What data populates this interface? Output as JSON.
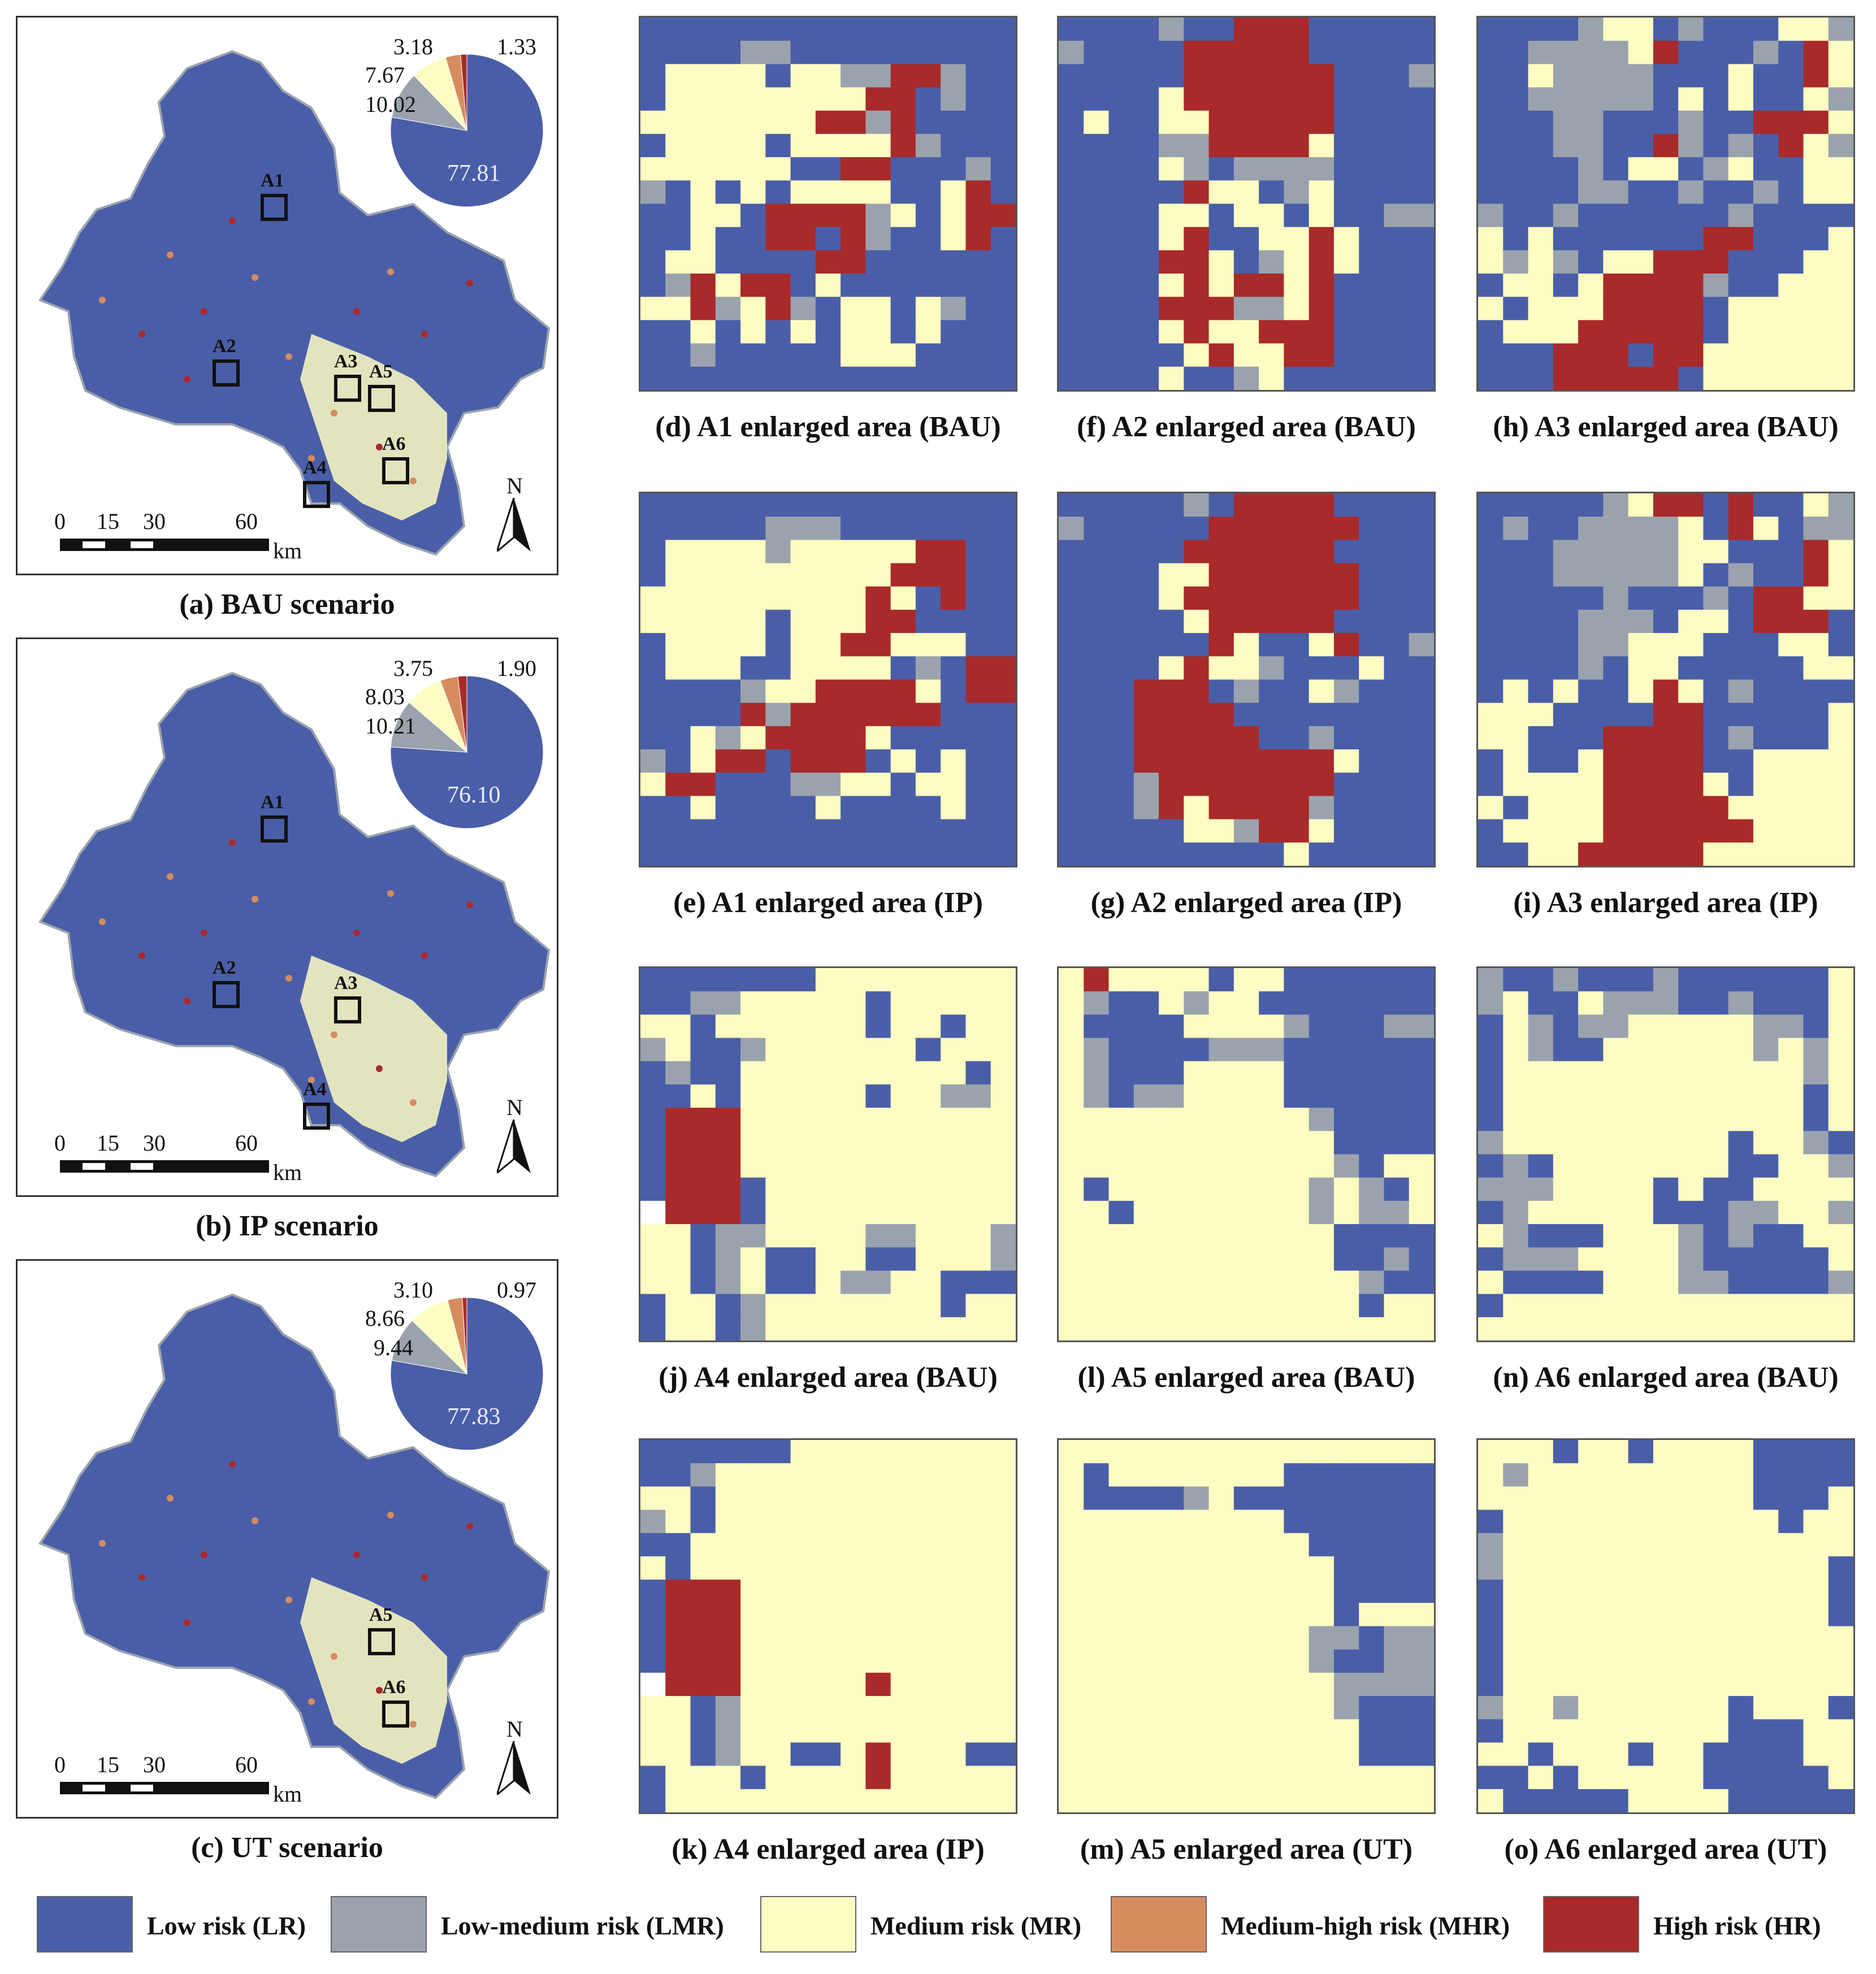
{
  "colors": {
    "LR": "#4a5ea8",
    "LMR": "#9aa3ad",
    "MR": "#fdfcc2",
    "MHR": "#d68c5e",
    "HR": "#a82a2a",
    "outline": "#111111"
  },
  "chart_data": [
    {
      "type": "pie",
      "title": "(a) BAU scenario",
      "categories": [
        "Low risk (LR)",
        "Low-medium risk (LMR)",
        "Medium risk (MR)",
        "Medium-high risk (MHR)",
        "High risk (HR)"
      ],
      "values": [
        77.81,
        10.02,
        7.67,
        3.18,
        1.33
      ],
      "labels": [
        "77.81",
        "10.02",
        "7.67",
        "3.18",
        "1.33"
      ],
      "areas": [
        "A1",
        "A2",
        "A3",
        "A5",
        "A6",
        "A4"
      ]
    },
    {
      "type": "pie",
      "title": "(b) IP scenario",
      "categories": [
        "Low risk (LR)",
        "Low-medium risk (LMR)",
        "Medium risk (MR)",
        "Medium-high risk (MHR)",
        "High risk (HR)"
      ],
      "values": [
        76.1,
        10.21,
        8.03,
        3.75,
        1.9
      ],
      "labels": [
        "76.10",
        "10.21",
        "8.03",
        "3.75",
        "1.90"
      ],
      "areas": [
        "A1",
        "A2",
        "A3",
        "A4"
      ]
    },
    {
      "type": "pie",
      "title": "(c) UT scenario",
      "categories": [
        "Low risk (LR)",
        "Low-medium risk (LMR)",
        "Medium risk (MR)",
        "Medium-high risk (MHR)",
        "High risk (HR)"
      ],
      "values": [
        77.83,
        9.44,
        8.66,
        3.1,
        0.97
      ],
      "labels": [
        "77.83",
        "9.44",
        "8.66",
        "3.10",
        "0.97"
      ],
      "areas": [
        "A5",
        "A6"
      ]
    }
  ],
  "scale_bar": {
    "ticks": [
      "0",
      "15",
      "30",
      "60"
    ],
    "unit": "km"
  },
  "north_label": "N",
  "panels": [
    {
      "caption": "(d) A1 enlarged area (BAU)",
      "grid": [
        "LLLLLLLLLLLLLLL",
        "LLLLGGLLLLLLLLL",
        "LMMMMLMMGGHHGLL",
        "LMMMMMMMMHHLGLL",
        "MMMMMMMHHGHLLLL",
        "LMMMMLMMMMHGLLL",
        "MMMMMMLLHHLLLGL",
        "GLMLMLMMMMLLMHL",
        "LLMMLHHHHGMLMHH",
        "LLMLLHHLHGLLMHL",
        "LMMLLLLHHLLLLLL",
        "LGHMHHLMLLLLLLL",
        "MMHGMHGLMMLMGLL",
        "LLMLMLMLMMLMLLL",
        "LLGLLLLLMMMLLLL",
        "LLLLLLLLLLLLLLL"
      ]
    },
    {
      "caption": "(f) A2 enlarged area (BAU)",
      "grid": [
        "LLLLGLLHHHLLLLL",
        "GLLLLHHHHHLLLLL",
        "LLLLLHHHHHHLLLG",
        "LLLLMHHHHHHLLLL",
        "LMLLMMHHHHHLLLL",
        "LLLLGGHHHHMLLLL",
        "LLLLMGLGGGGLLLL",
        "LLLLLHMMLGMLLLL",
        "LLLLMMLMMLMLLGG",
        "LLLLMHLLMMHMLLL",
        "LLLLHHMLGMHMLLL",
        "LLLLMHMHHMHLLLL",
        "LLLLHHHGGMHLLLL",
        "LLLLMHMMHHHLLLL",
        "LLLLLMHMMHHLLLL",
        "LLLLMLLGMLLLLLL"
      ]
    },
    {
      "caption": "(h) A3 enlarged area (BAU)",
      "grid": [
        "LLLLGMMLGLLLMMG",
        "LLGGGGMHLLLGLHM",
        "LLMGGGGLLLMLLHM",
        "LLGGGGGLMLMLLMG",
        "LLLGGLLLGLLHHHM",
        "LLLGGLLHGLGLHMG",
        "LLLLGLMMLGMLLMM",
        "LLLLGGLLGLLGLMM",
        "GLLGLLLLLLGLLLL",
        "MLMLLLLLLHHLLLM",
        "MGMGLMMHHHLLLMM",
        "LMMLMHHHHGLLMMM",
        "MLMMMHHHHLMMMMM",
        "LMMMHHHHHLMMMMM",
        "LLLHHHLHHMMMMMM",
        "LLLHHHHHLMMMMMM"
      ]
    },
    {
      "caption": "(e) A1 enlarged area (IP)",
      "grid": [
        "LLLLLLLLLLLLLLL",
        "LLLLLGGGLLLLLLL",
        "LMMMMGMMMMMHHLL",
        "LMMMMMMMMMHHHLL",
        "MMMMMMMMMHMLHLL",
        "MMMMMLMMMHHLLLL",
        "LMMMMLMMHHMMMLL",
        "LMMMLLMMMMLGLHH",
        "LLLLGMMHHHHMLHH",
        "LLLLHGHHHHHHLLL",
        "LLMGMHHHHMLLLLL",
        "GLMHHLHHHLMLMLL",
        "MHHLLLGGMMLMMLL",
        "LLMLLLLMLLLLMLL",
        "LLLLLLLLLLLLLLL",
        "LLLLLLLLLLLLLLL"
      ]
    },
    {
      "caption": "(g) A2 enlarged area (IP)",
      "grid": [
        "LLLLLGLHHHHLLLL",
        "GLLLLLHHHHHHLLL",
        "LLLLLHHHHHHLLLL",
        "LLLLMMHHHHHHLLL",
        "LLLLMHHHHHHHLLL",
        "LLLLLMHHHHHLLLL",
        "LLLLLLHMLLMHLLG",
        "LLLLMHMMGLLLMLL",
        "LLLHHHLGLLMGLLL",
        "LLLHHHHLLLLLLLL",
        "LLLHHHHHLLGLLLL",
        "LLLHHHHHHHHMLLL",
        "LLLGHHHHHHHLLLL",
        "LLLGHMHHHHGLLLL",
        "LLLLLMMGHHMLLLL",
        "LLLLLLLLLMLLLLL"
      ]
    },
    {
      "caption": "(i) A3 enlarged area (IP)",
      "grid": [
        "LLLLLGMHHLHLLMG",
        "LGLLGGGGMLHMLGG",
        "LLLGGGGGMMLLLHM",
        "LLLGGGGGMLGLLHM",
        "LLLLLGLLLGLHHMM",
        "LLLLGGGLMMLHHHL",
        "LLLLGGMMMLLLMML",
        "LLLLGLMMLLLLLMM",
        "LMLMLLMHMLGLLLL",
        "MMMLLLLHHLLLLLM",
        "MMLLLHHHHLGLLLM",
        "LMLLMHHHHLLMMMM",
        "LMMMMHHHHMLMMMM",
        "MLMMMHHHHHMMMMM",
        "LMMMMHHHHHHMMMM",
        "LLMMHHHHHMMMMMM"
      ]
    },
    {
      "caption": "(j) A4 enlarged area (BAU)",
      "grid": [
        "LLLLLLLMMMMMMMM",
        "LLGGMMMMMLMMMMM",
        "MMLMMMMMMLMMLMM",
        "GMLLGMMMMMMLMMM",
        "LGLLMMMMMMMMMLM",
        "LLMLMMMMMLMMGGM",
        "LHHHMMMMMMMMMMM",
        "LHHHMMMMMMMMMMM",
        "LHHHMMMMMMMMMMM",
        "LHHHLMMMMMMMMMM",
        "WHHHLMMMMMMMMMM",
        "MMLGGMMMMGGMMMG",
        "MMLGMLLMMLLMMMG",
        "MMLGMLLMGGMMLLL",
        "LMMLGMMMMMMMLMM",
        "LMMLGMMMMMMMMMM"
      ]
    },
    {
      "caption": "(l) A5 enlarged area (BAU)",
      "grid": [
        "MHMMMMLMMLLLLLL",
        "MGLLMGMMLLLLLLL",
        "MLLLLMMMMGLLLGG",
        "MGLLLLGGGLLLLLL",
        "MGLLLMMMMLLLLLL",
        "MGLGGMMMMLLLLLL",
        "MMMMMMMMMMGLLLL",
        "MMMMMMMMMMMLLLL",
        "MMMMMMMMMMMGLMM",
        "MLMMMMMMMMGMGLM",
        "MMLMMMMMMMGMGGM",
        "MMMMMMMMMMMLLLL",
        "MMMMMMMMMMMLLGL",
        "MMMMMMMMMMMMGLL",
        "MMMMMMMMMMMMLMM",
        "MMMMMMMMMMMMMMM"
      ]
    },
    {
      "caption": "(n) A6 enlarged area (BAU)",
      "grid": [
        "GLLGLLLGLLLLLLM",
        "GMLLMGGGLLGLLLM",
        "LMGLGGMMMMMGGLM",
        "LMGLLMMMMMMGMGM",
        "LMMMMMMMMMMMMGM",
        "LMMMMMMMMMMMMLM",
        "LMMMMMMMMMMMMLM",
        "GMMMMMMMMMLMMGL",
        "LGLMMMMMMMLLMMG",
        "GGGMMMMLMLLMMMM",
        "LGMMMMMLLLGGMMG",
        "MGLLLMMMGLGLLMM",
        "LGGGMMMMGLLLLLM",
        "MLLLLMMMGGLLLLG",
        "LMMMMMMMMMMMMMM",
        "MMMMMMMMMMMMMMM"
      ]
    },
    {
      "caption": "(k) A4 enlarged area (IP)",
      "grid": [
        "LLLLLLMMMMMMMMM",
        "LLGMMMMMMMMMMMM",
        "MMLMMMMMMMMMMMM",
        "GMLMMMMMMMMMMMM",
        "LLMMMMMMMMMMMMM",
        "MLMMMMMMMMMMMMM",
        "LHHHMMMMMMMMMMM",
        "LHHHMMMMMMMMMMM",
        "LHHHMMMMMMMMMMM",
        "LHHHMMMMMMMMMMM",
        "WHHHMMMMMHMMMMM",
        "MMLGMMMMMMMMMMM",
        "MMLGMMMMMMMMMMM",
        "MMLGMMLLMHMMMLL",
        "LMMMLMMMMHMMMMM",
        "LMMMMMMMMMMMMMM"
      ]
    },
    {
      "caption": "(m) A5 enlarged area (UT)",
      "grid": [
        "MMMMMMMMMMMMMMM",
        "MLMMMMMMMLLLLLL",
        "MLLLLGMLLLLLLLL",
        "MMMMMMMMMLLLLLL",
        "MMMMMMMMMMLLLLL",
        "MMMMMMMMMMMLLLL",
        "MMMMMMMMMMMLLLL",
        "MMMMMMMMMMMLMMM",
        "MMMMMMMMMMGGLGG",
        "MMMMMMMMMMGLLGG",
        "MMMMMMMMMMMGGGG",
        "MMMMMMMMMMMGLLL",
        "MMMMMMMMMMMMLLL",
        "MMMMMMMMMMMMLLL",
        "MMMMMMMMMMMMMMM",
        "MMMMMMMMMMMMMMM"
      ]
    },
    {
      "caption": "(o) A6 enlarged area (UT)",
      "grid": [
        "MMMLMMLMMMMLLLL",
        "MGMMMMMMMMMLLLL",
        "MMMMMMMMMMMLLLM",
        "LMMMMMMMMMMMLMM",
        "GMMMMMMMMMMMMMM",
        "GMMMMMMMMMMMMML",
        "LMMMMMMMMMMMMML",
        "LMMMMMMMMMMMMML",
        "LMMMMMMMMMMMMMM",
        "LMMMMMMMMMMMMMM",
        "LMMMMMMMMMMMMMM",
        "GMMGMMMMMMLMMML",
        "LMMMMMMMMMLLLMM",
        "MMLMMMLMMLLLLMM",
        "LLMLMMMMMLLLLLM",
        "MLLLLLMMMMLLLLL"
      ]
    }
  ],
  "legend": [
    {
      "key": "LR",
      "label": "Low risk (LR)"
    },
    {
      "key": "LMR",
      "label": "Low-medium risk (LMR)"
    },
    {
      "key": "MR",
      "label": "Medium risk (MR)"
    },
    {
      "key": "MHR",
      "label": "Medium-high risk (MHR)"
    },
    {
      "key": "HR",
      "label": "High risk (HR)"
    }
  ]
}
